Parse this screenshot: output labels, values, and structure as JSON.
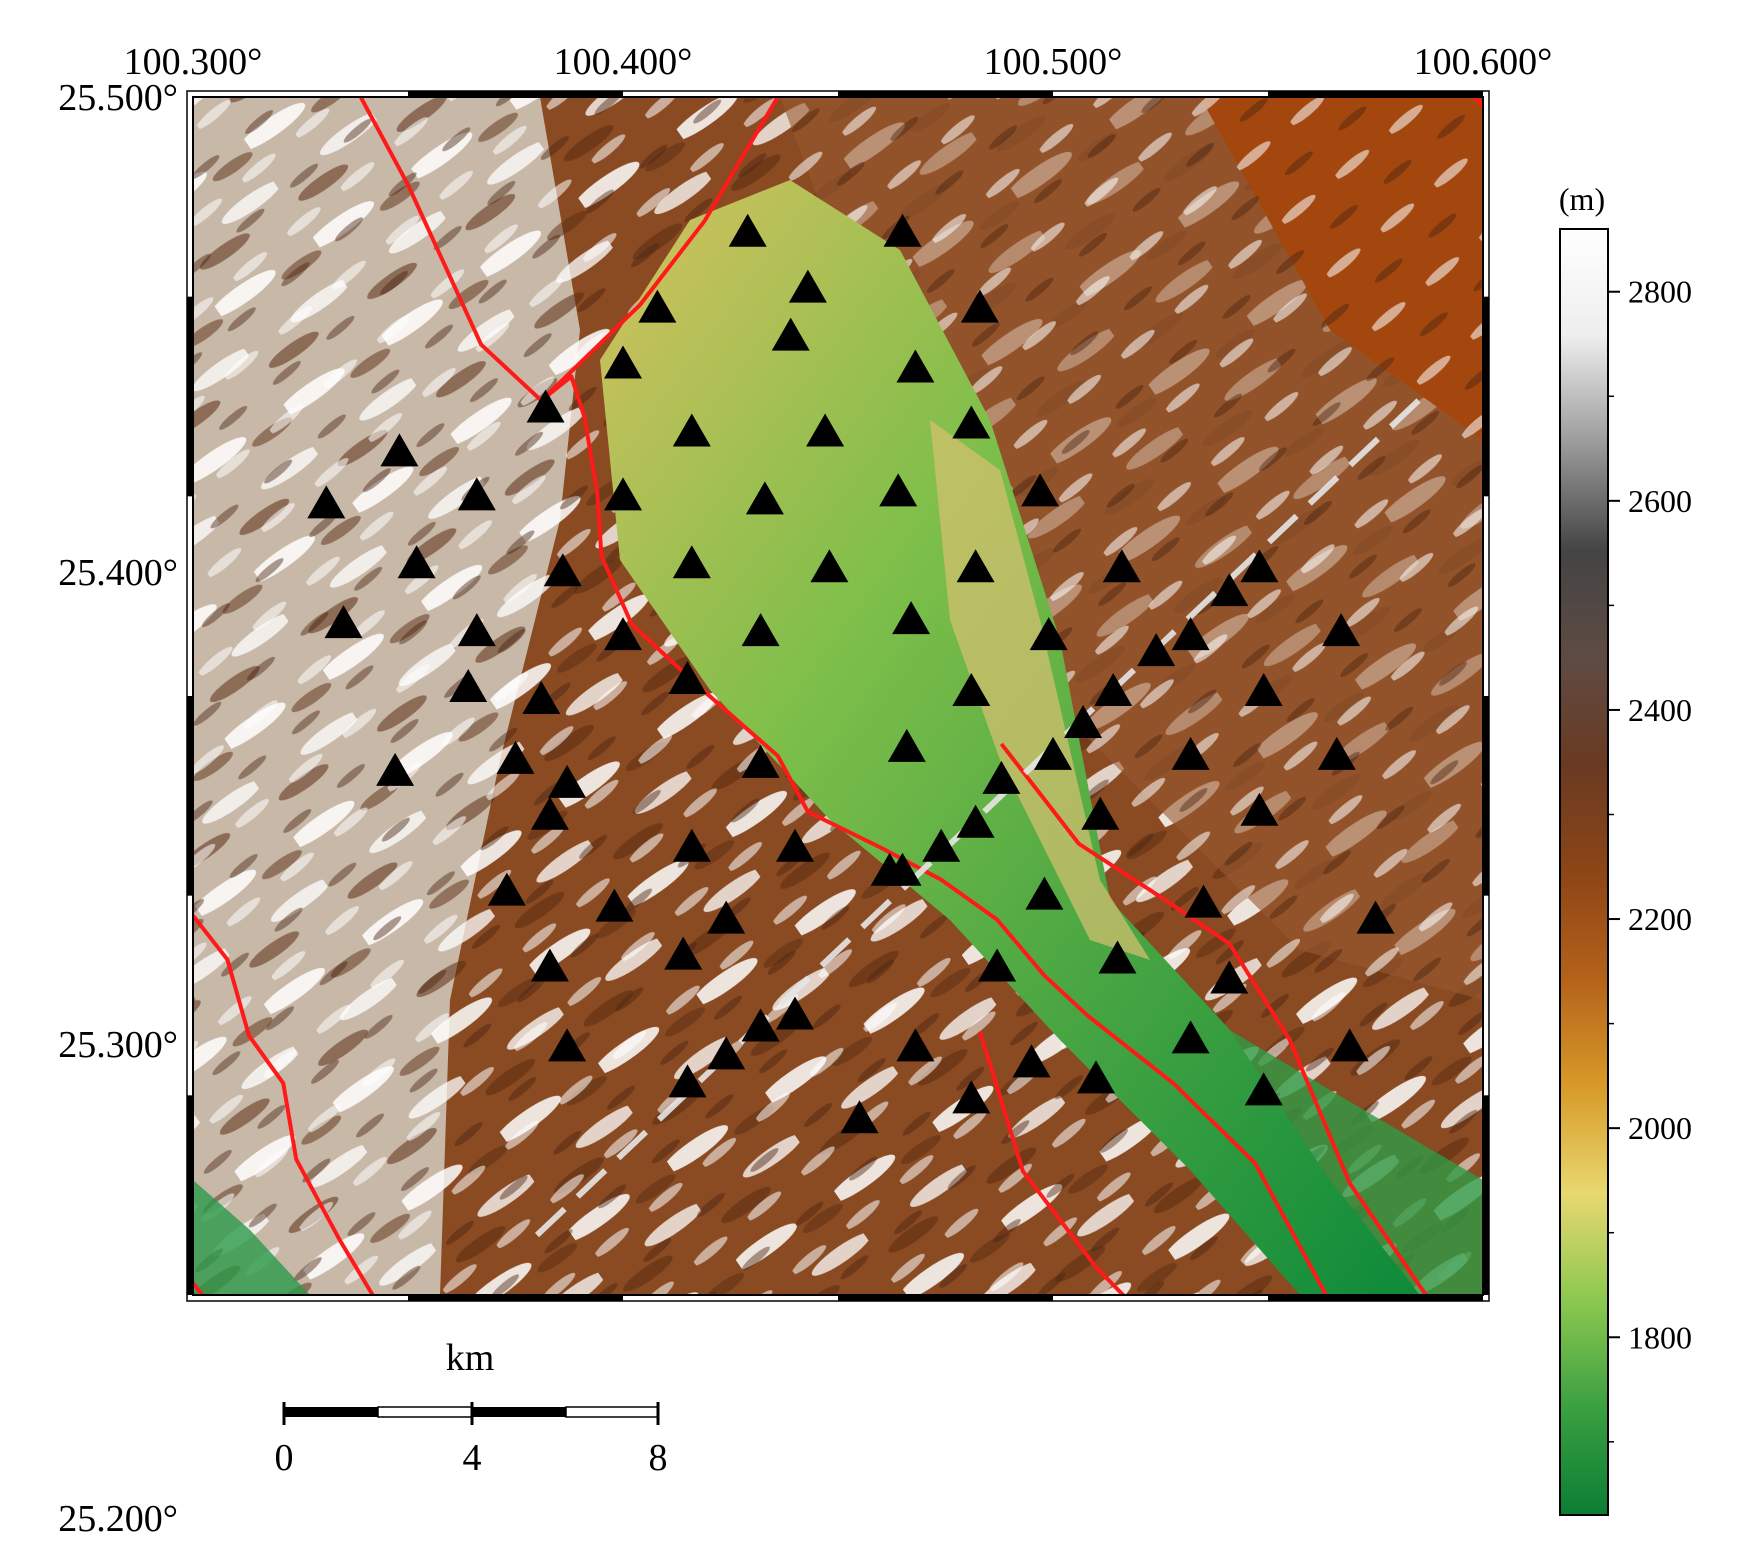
{
  "map": {
    "lon_labels": [
      "100.300°",
      "100.400°",
      "100.500°",
      "100.600°"
    ],
    "lat_labels": [
      "25.500°",
      "25.400°",
      "25.300°",
      "25.200°"
    ],
    "lon_values": [
      100.3,
      100.4,
      100.5,
      100.6
    ],
    "lat_values": [
      25.5,
      25.4,
      25.3,
      25.2
    ],
    "extent": {
      "lon_min": 100.3,
      "lon_max": 100.6,
      "lat_min": 25.2,
      "lat_max": 25.5
    }
  },
  "colorbar": {
    "unit": "(m)",
    "ticks": [
      "2800",
      "2600",
      "2400",
      "2200",
      "2000",
      "1800"
    ],
    "tick_values": [
      2800,
      2600,
      2400,
      2200,
      2000,
      1800
    ],
    "range": [
      1630,
      2860
    ],
    "colors": [
      "#0b7d34",
      "#3aa040",
      "#8cc850",
      "#e8d870",
      "#d89a28",
      "#b4621a",
      "#8c4516",
      "#6a3a22",
      "#5e4b43",
      "#444444",
      "#9a9a9a",
      "#eeeeee",
      "#ffffff"
    ]
  },
  "scalebar": {
    "unit": "km",
    "labels": [
      "0",
      "4",
      "8"
    ]
  },
  "colors": {
    "fault": "#ff1a1a",
    "profile": "#e6e6e6",
    "station": "#000000"
  },
  "stations": [
    [
      100.429,
      25.466
    ],
    [
      100.465,
      25.466
    ],
    [
      100.443,
      25.452
    ],
    [
      100.408,
      25.447
    ],
    [
      100.483,
      25.447
    ],
    [
      100.439,
      25.44
    ],
    [
      100.4,
      25.433
    ],
    [
      100.468,
      25.432
    ],
    [
      100.382,
      25.422
    ],
    [
      100.416,
      25.416
    ],
    [
      100.447,
      25.416
    ],
    [
      100.481,
      25.418
    ],
    [
      100.348,
      25.411
    ],
    [
      100.331,
      25.398
    ],
    [
      100.366,
      25.4
    ],
    [
      100.4,
      25.4
    ],
    [
      100.433,
      25.399
    ],
    [
      100.464,
      25.401
    ],
    [
      100.497,
      25.401
    ],
    [
      100.352,
      25.383
    ],
    [
      100.386,
      25.381
    ],
    [
      100.416,
      25.383
    ],
    [
      100.448,
      25.382
    ],
    [
      100.482,
      25.382
    ],
    [
      100.516,
      25.382
    ],
    [
      100.548,
      25.382
    ],
    [
      100.541,
      25.376
    ],
    [
      100.335,
      25.368
    ],
    [
      100.366,
      25.366
    ],
    [
      100.4,
      25.365
    ],
    [
      100.432,
      25.366
    ],
    [
      100.467,
      25.369
    ],
    [
      100.499,
      25.365
    ],
    [
      100.524,
      25.361
    ],
    [
      100.532,
      25.365
    ],
    [
      100.567,
      25.366
    ],
    [
      100.364,
      25.352
    ],
    [
      100.415,
      25.354
    ],
    [
      100.381,
      25.349
    ],
    [
      100.481,
      25.351
    ],
    [
      100.514,
      25.351
    ],
    [
      100.549,
      25.351
    ],
    [
      100.507,
      25.343
    ],
    [
      100.347,
      25.331
    ],
    [
      100.375,
      25.334
    ],
    [
      100.432,
      25.333
    ],
    [
      100.466,
      25.337
    ],
    [
      100.5,
      25.335
    ],
    [
      100.532,
      25.335
    ],
    [
      100.566,
      25.335
    ],
    [
      100.387,
      25.328
    ],
    [
      100.488,
      25.329
    ],
    [
      100.383,
      25.32
    ],
    [
      100.511,
      25.32
    ],
    [
      100.548,
      25.321
    ],
    [
      100.416,
      25.312
    ],
    [
      100.44,
      25.312
    ],
    [
      100.482,
      25.318
    ],
    [
      100.474,
      25.312
    ],
    [
      100.462,
      25.306
    ],
    [
      100.465,
      25.306
    ],
    [
      100.373,
      25.301
    ],
    [
      100.398,
      25.297
    ],
    [
      100.498,
      25.3
    ],
    [
      100.535,
      25.298
    ],
    [
      100.424,
      25.294
    ],
    [
      100.575,
      25.294
    ],
    [
      100.414,
      25.285
    ],
    [
      100.383,
      25.282
    ],
    [
      100.515,
      25.284
    ],
    [
      100.487,
      25.282
    ],
    [
      100.541,
      25.279
    ],
    [
      100.44,
      25.27
    ],
    [
      100.432,
      25.267
    ],
    [
      100.468,
      25.262
    ],
    [
      100.532,
      25.264
    ],
    [
      100.569,
      25.262
    ],
    [
      100.387,
      25.262
    ],
    [
      100.424,
      25.26
    ],
    [
      100.495,
      25.258
    ],
    [
      100.51,
      25.254
    ],
    [
      100.415,
      25.253
    ],
    [
      100.481,
      25.249
    ],
    [
      100.549,
      25.251
    ],
    [
      100.455,
      25.244
    ]
  ],
  "faults": [
    [
      [
        100.339,
        25.5
      ],
      [
        100.35,
        25.478
      ],
      [
        100.367,
        25.438
      ],
      [
        100.375,
        25.43
      ],
      [
        100.381,
        25.424
      ],
      [
        100.388,
        25.43
      ],
      [
        100.391,
        25.42
      ],
      [
        100.394,
        25.401
      ],
      [
        100.395,
        25.385
      ],
      [
        100.402,
        25.368
      ],
      [
        100.418,
        25.352
      ],
      [
        100.436,
        25.335
      ],
      [
        100.443,
        25.321
      ],
      [
        100.46,
        25.312
      ],
      [
        100.474,
        25.304
      ],
      [
        100.487,
        25.294
      ],
      [
        100.498,
        25.28
      ],
      [
        100.508,
        25.27
      ],
      [
        100.528,
        25.253
      ],
      [
        100.547,
        25.233
      ],
      [
        100.556,
        25.215
      ],
      [
        100.565,
        25.197
      ]
    ],
    [
      [
        100.381,
        25.424
      ],
      [
        100.404,
        25.448
      ],
      [
        100.419,
        25.469
      ],
      [
        100.436,
        25.5
      ]
    ],
    [
      [
        100.598,
        25.5
      ],
      [
        100.625,
        25.47
      ],
      [
        100.657,
        25.45
      ],
      [
        100.684,
        25.42
      ],
      [
        100.696,
        25.41
      ]
    ],
    [
      [
        100.488,
        25.338
      ],
      [
        100.506,
        25.313
      ],
      [
        100.526,
        25.299
      ],
      [
        100.541,
        25.288
      ],
      [
        100.555,
        25.264
      ],
      [
        100.569,
        25.228
      ],
      [
        100.588,
        25.198
      ]
    ],
    [
      [
        100.483,
        25.266
      ],
      [
        100.493,
        25.231
      ],
      [
        100.51,
        25.207
      ],
      [
        100.519,
        25.197
      ]
    ],
    [
      [
        100.3,
        25.295
      ],
      [
        100.308,
        25.284
      ],
      [
        100.313,
        25.265
      ],
      [
        100.321,
        25.253
      ],
      [
        100.324,
        25.234
      ],
      [
        100.334,
        25.214
      ],
      [
        100.344,
        25.196
      ]
    ],
    [
      [
        100.3,
        25.203
      ],
      [
        100.305,
        25.196
      ]
    ]
  ],
  "profile": {
    "start": [
      100.38,
      25.215
    ],
    "end": [
      100.586,
      25.425
    ]
  }
}
